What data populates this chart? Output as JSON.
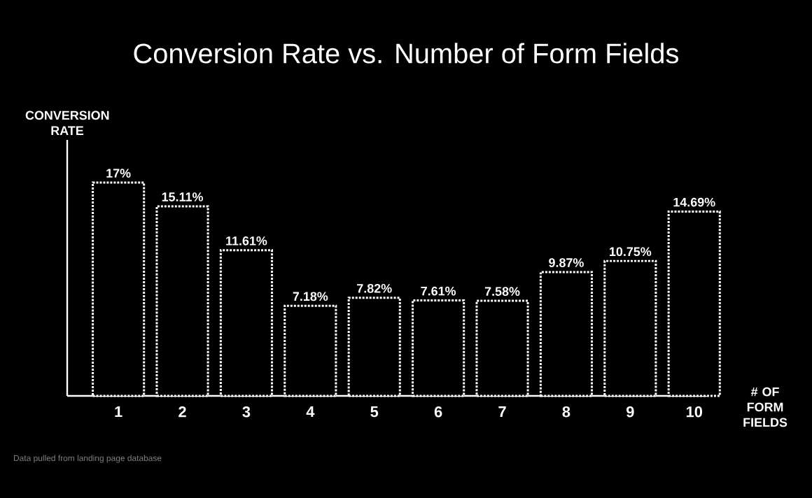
{
  "chart_data": {
    "type": "bar",
    "title": "Conversion Rate vs. Number of Form Fields",
    "xlabel": "# OF FORM FIELDS",
    "ylabel": "CONVERSION RATE",
    "categories": [
      "1",
      "2",
      "3",
      "4",
      "5",
      "6",
      "7",
      "8",
      "9",
      "10"
    ],
    "values": [
      17,
      15.11,
      11.61,
      7.18,
      7.82,
      7.61,
      7.58,
      9.87,
      10.75,
      14.69
    ],
    "value_labels": [
      "17%",
      "15.11%",
      "11.61%",
      "7.18%",
      "7.82%",
      "7.61%",
      "7.58%",
      "9.87%",
      "10.75%",
      "14.69%"
    ],
    "color": "#ffffff",
    "line_style": "dotted",
    "annotations": [
      "Data pulled from landing page database"
    ]
  }
}
